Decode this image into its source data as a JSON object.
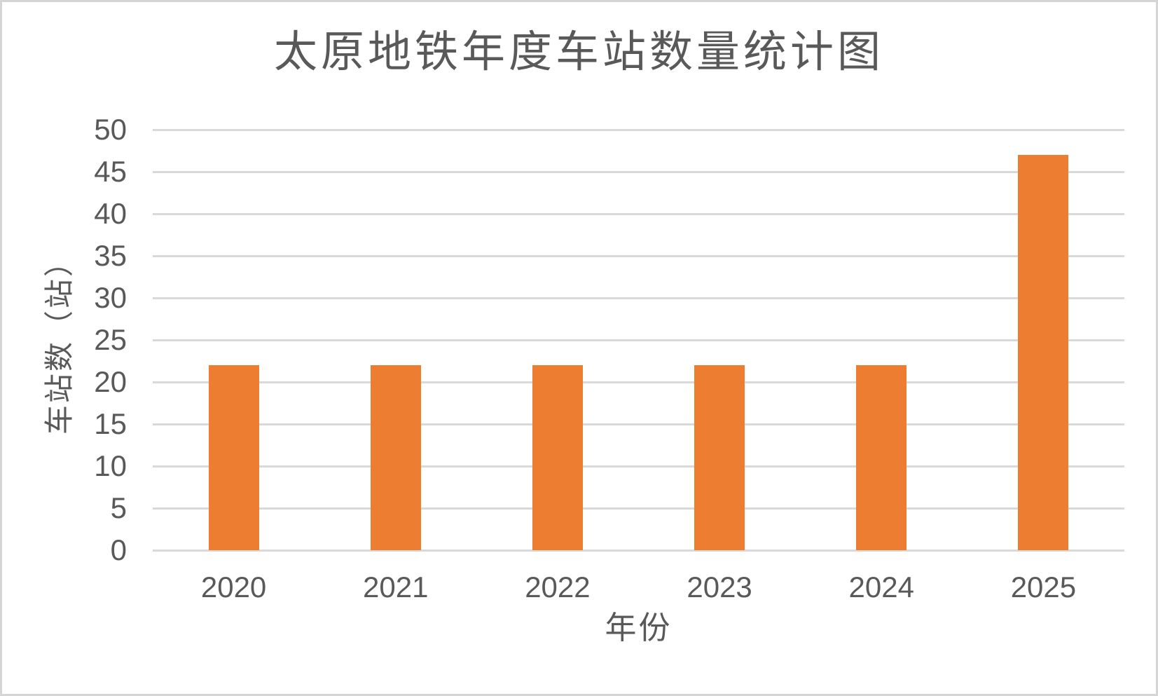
{
  "chart_data": {
    "type": "bar",
    "title": "太原地铁年度车站数量统计图",
    "xlabel": "年份",
    "ylabel": "车站数（站）",
    "categories": [
      "2020",
      "2021",
      "2022",
      "2023",
      "2024",
      "2025"
    ],
    "values": [
      22,
      22,
      22,
      22,
      22,
      47
    ],
    "ylim": [
      0,
      50
    ],
    "ytick_step": 5,
    "ytick_labels": [
      "0",
      "5",
      "10",
      "15",
      "20",
      "25",
      "30",
      "35",
      "40",
      "45",
      "50"
    ],
    "grid": true,
    "legend_position": "none",
    "bar_color": "#ED7D31",
    "gridline_color": "#D9D9D9",
    "text_color": "#595959",
    "background_color": "#FFFFFF",
    "border_color": "#D5D5D5"
  }
}
